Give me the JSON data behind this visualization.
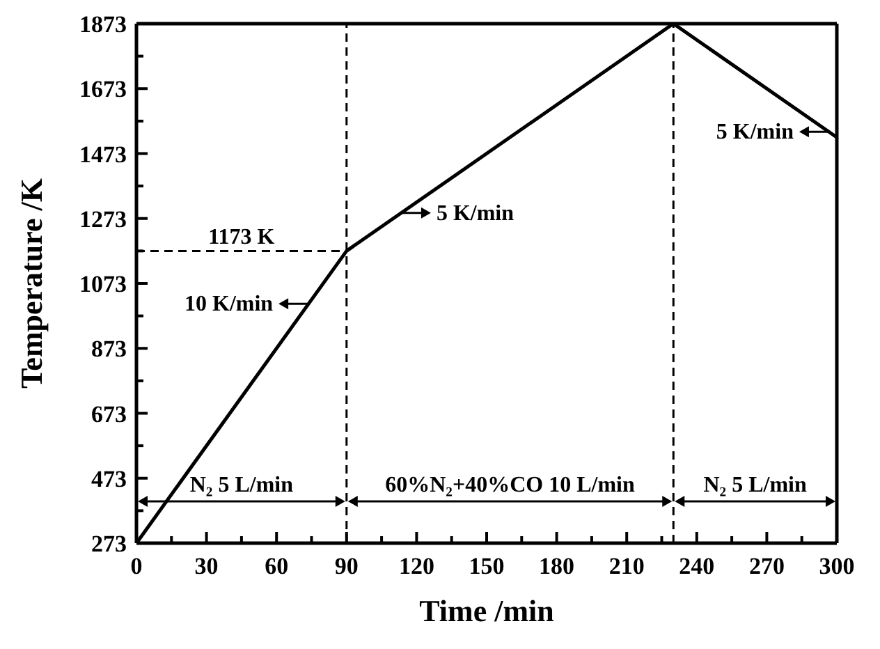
{
  "chart_data": {
    "type": "line",
    "xlabel": "Time /min",
    "ylabel": "Temperature /K",
    "x": [
      0,
      90,
      230,
      300
    ],
    "series": [
      {
        "color": "#000000",
        "values": [
          273,
          1173,
          1873,
          1523
        ]
      }
    ],
    "xlim": [
      0,
      300
    ],
    "xticks": [
      0,
      {
        "value": 15,
        "label": null
      },
      30,
      {
        "value": 45,
        "label": null
      },
      60,
      {
        "value": 75,
        "label": null
      },
      90,
      {
        "value": 105,
        "label": null
      },
      120,
      {
        "value": 135,
        "label": null
      },
      150,
      {
        "value": 165,
        "label": null
      },
      180,
      {
        "value": 195,
        "label": null
      },
      210,
      {
        "value": 225,
        "label": null
      },
      240,
      {
        "value": 255,
        "label": null
      },
      270,
      {
        "value": 285,
        "label": null
      },
      300
    ],
    "ylim": [
      273,
      1873
    ],
    "yticks": [
      273,
      {
        "value": 373,
        "label": null
      },
      473,
      {
        "value": 573,
        "label": null
      },
      673,
      {
        "value": 773,
        "label": null
      },
      873,
      {
        "value": 973,
        "label": null
      },
      1073,
      {
        "value": 1173,
        "label": null
      },
      1273,
      {
        "value": 1373,
        "label": null
      },
      1473,
      {
        "value": 1573,
        "label": null
      },
      1673,
      {
        "value": 1773,
        "label": null
      },
      1873
    ],
    "ref_lines": [
      {
        "axis": "x",
        "value": 90,
        "line_style": "dashed",
        "color": "#000000"
      },
      {
        "axis": "x",
        "value": 230,
        "line_style": "dashed",
        "color": "#000000"
      },
      {
        "axis": "y",
        "value": 1173,
        "label": "1173 K",
        "line_style": "dashed",
        "color": "#000000"
      }
    ],
    "annotations": [
      "N₂ 5 L/min",
      "60%N₂+40%CO 10 L/min",
      "N₂ 5 L/min",
      {
        "text": "10 K/min",
        "x": 74,
        "y": 1010
      },
      {
        "text": "5 K/min",
        "x": 113,
        "y": 1290
      },
      {
        "text": "5 K/min",
        "x": 297,
        "y": 1540
      }
    ]
  }
}
